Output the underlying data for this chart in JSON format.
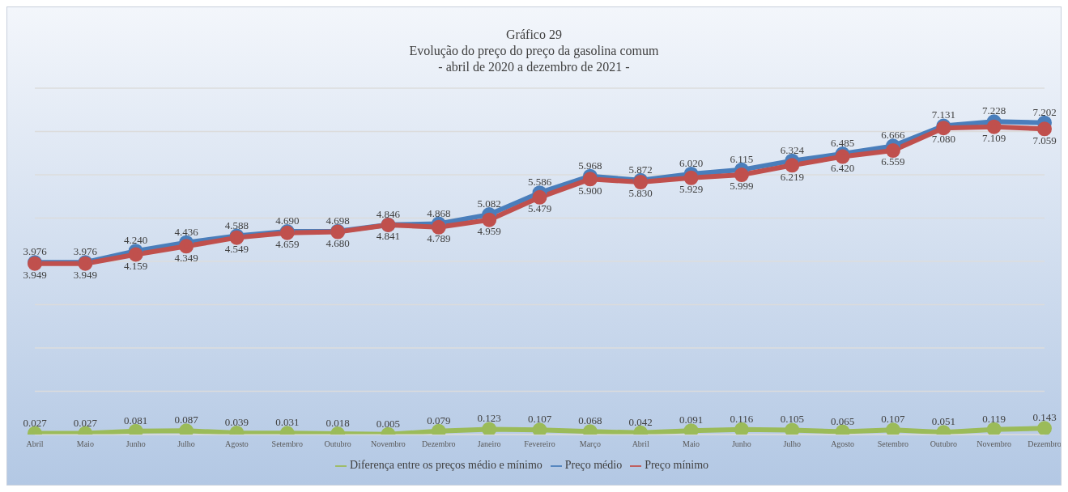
{
  "chart_data": {
    "type": "line",
    "title": "Gráfico 29",
    "subtitle": "Evolução do preço do preço da gasolina comum\n- abril de 2020 a dezembro de 2021 -",
    "categories": [
      "Abril",
      "Maio",
      "Junho",
      "Julho",
      "Agosto",
      "Setembro",
      "Outubro",
      "Novembro",
      "Dezembro",
      "Janeiro",
      "Fevereiro",
      "Março",
      "Abril",
      "Maio",
      "Junho",
      "Julho",
      "Agosto",
      "Setembro",
      "Outubro",
      "Novembro",
      "Dezembro"
    ],
    "series": [
      {
        "name": "Preço médio",
        "color": "#4a7ebb",
        "values": [
          3.976,
          3.976,
          4.24,
          4.436,
          4.588,
          4.69,
          4.698,
          4.846,
          4.868,
          5.082,
          5.586,
          5.968,
          5.872,
          6.02,
          6.115,
          6.324,
          6.485,
          6.666,
          7.131,
          7.228,
          7.202
        ],
        "value_labels": [
          "3.976",
          "3.976",
          "4.240",
          "4.436",
          "4.588",
          "4.690",
          "4.698",
          "4.846",
          "4.868",
          "5.082",
          "5.586",
          "5.968",
          "5.872",
          "6.020",
          "6.115",
          "6.324",
          "6.485",
          "6.666",
          "7.131",
          "7.228",
          "7.202"
        ]
      },
      {
        "name": "Preço mínimo",
        "color": "#c0504d",
        "values": [
          3.949,
          3.949,
          4.159,
          4.349,
          4.549,
          4.659,
          4.68,
          4.841,
          4.789,
          4.959,
          5.479,
          5.9,
          5.83,
          5.929,
          5.999,
          6.219,
          6.42,
          6.559,
          7.08,
          7.109,
          7.059
        ],
        "value_labels": [
          "3.949",
          "3.949",
          "4.159",
          "4.349",
          "4.549",
          "4.659",
          "4.680",
          "4.841",
          "4.789",
          "4.959",
          "5.479",
          "5.900",
          "5.830",
          "5.929",
          "5.999",
          "6.219",
          "6.420",
          "6.559",
          "7.080",
          "7.109",
          "7.059"
        ]
      },
      {
        "name": "Diferença entre os preços médio e mínimo",
        "color": "#9bbb59",
        "values": [
          0.027,
          0.027,
          0.081,
          0.087,
          0.039,
          0.031,
          0.018,
          0.005,
          0.079,
          0.123,
          0.107,
          0.068,
          0.042,
          0.091,
          0.116,
          0.105,
          0.065,
          0.107,
          0.051,
          0.119,
          0.143
        ],
        "value_labels": [
          "0.027",
          "0.027",
          "0.081",
          "0.087",
          "0.039",
          "0.031",
          "0.018",
          "0.005",
          "0.079",
          "0.123",
          "0.107",
          "0.068",
          "0.042",
          "0.091",
          "0.116",
          "0.105",
          "0.065",
          "0.107",
          "0.051",
          "0.119",
          "0.143"
        ]
      }
    ],
    "ylim": [
      0,
      8
    ],
    "yticks": [
      {
        "value": 0,
        "label": null
      },
      {
        "value": 1,
        "label": null
      },
      {
        "value": 2,
        "label": null
      },
      {
        "value": 3,
        "label": null
      },
      {
        "value": 4,
        "label": null
      },
      {
        "value": 5,
        "label": null
      },
      {
        "value": 6,
        "label": null
      },
      {
        "value": 7,
        "label": null
      },
      {
        "value": 8,
        "label": null
      }
    ],
    "tick_labels": "x",
    "grid": "y",
    "legend": "bottom",
    "marker": "circle",
    "line_style": "solid"
  }
}
